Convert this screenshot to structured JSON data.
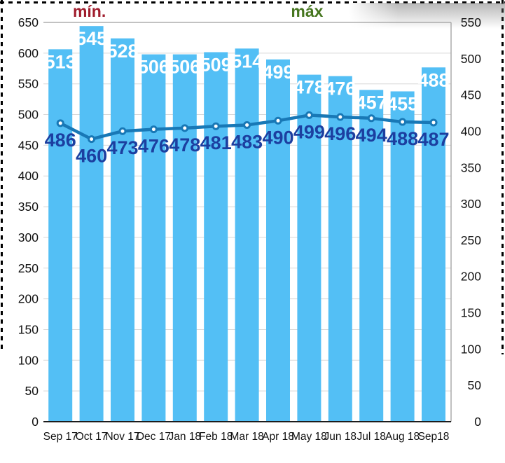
{
  "page": {
    "background": "#FFFFFF"
  },
  "selection_border": {
    "style": "dashed",
    "color": "#000000"
  },
  "annotations": {
    "min": {
      "label": "mín.",
      "color": "#A01D2D",
      "category_index": 1
    },
    "max": {
      "label": "máx",
      "color": "#46761F",
      "category_index": 8
    }
  },
  "chart_data": {
    "type": "bar",
    "subtype": "bars-with-line-dual-axis",
    "title": "",
    "xlabel": "",
    "ylabel": "",
    "legend": "none",
    "categories": [
      "Sep 17",
      "Oct 17",
      "Nov 17",
      "Dec 17",
      "Jan 18",
      "Feb 18",
      "Mar 18",
      "Apr 18",
      "May 18",
      "Jun 18",
      "Jul 18",
      "Aug 18",
      "Sep18"
    ],
    "series": [
      {
        "name": "bar-series",
        "type": "bar",
        "axis": "right",
        "color": "#53BFF5",
        "label_color": "#FFFFFF",
        "values": [
          513,
          545,
          528,
          506,
          506,
          509,
          514,
          499,
          478,
          476,
          457,
          455,
          488
        ]
      },
      {
        "name": "line-series",
        "type": "line",
        "axis": "left",
        "color": "#1878B6",
        "label_color": "#1C3FA0",
        "marker": "circle-white-fill",
        "values": [
          486,
          460,
          473,
          476,
          478,
          481,
          483,
          490,
          499,
          496,
          494,
          488,
          487
        ]
      }
    ],
    "left_axis": {
      "min": 0,
      "max": 650,
      "step": 50,
      "ticks": [
        0,
        50,
        100,
        150,
        200,
        250,
        300,
        350,
        400,
        450,
        500,
        550,
        600,
        650
      ]
    },
    "right_axis": {
      "min": 0,
      "max": 550,
      "step": 50,
      "ticks": [
        0,
        50,
        100,
        150,
        200,
        250,
        300,
        350,
        400,
        450,
        500,
        550
      ]
    },
    "grid": {
      "show": true,
      "color": "#D8D8D8"
    },
    "frame_color": "#9E9E9E",
    "baseline_color": "#1C1C1C",
    "tick_text_color": "#121212"
  }
}
